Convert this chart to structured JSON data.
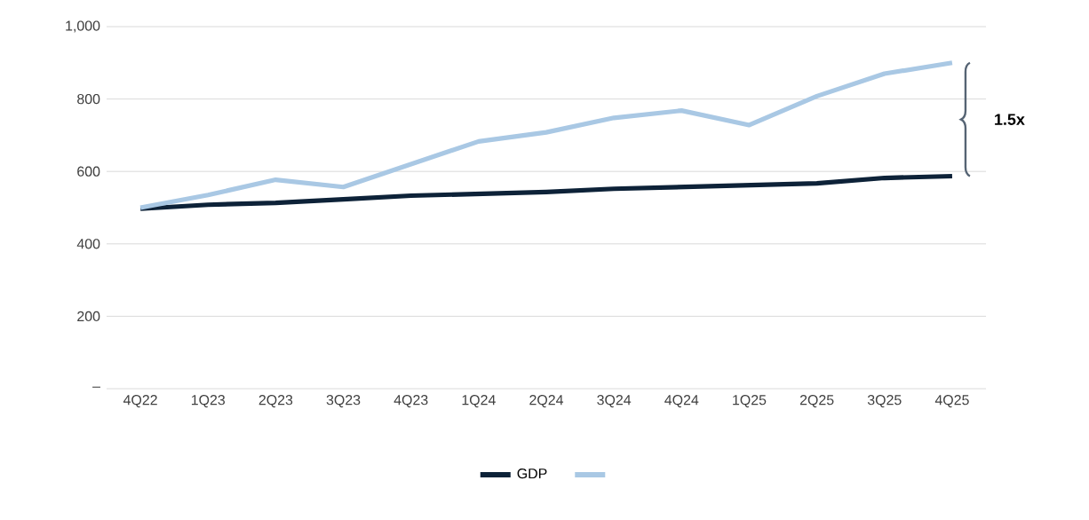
{
  "chart_data": {
    "type": "line",
    "categories": [
      "4Q22",
      "1Q23",
      "2Q23",
      "3Q23",
      "4Q23",
      "1Q24",
      "2Q24",
      "3Q24",
      "4Q24",
      "1Q25",
      "2Q25",
      "3Q25",
      "4Q25"
    ],
    "series": [
      {
        "name": "GDP",
        "color": "#0d2238",
        "values": [
          497,
          508,
          513,
          523,
          533,
          538,
          543,
          552,
          557,
          562,
          567,
          582,
          587
        ]
      },
      {
        "color": "#a9c8e4",
        "values": [
          500,
          535,
          577,
          557,
          620,
          683,
          708,
          748,
          768,
          728,
          808,
          870,
          900
        ]
      }
    ],
    "ylim": [
      0,
      1000
    ],
    "yticks": [
      {
        "value": 0,
        "label": "–"
      },
      200,
      400,
      600,
      800,
      {
        "value": 1000,
        "label": "1,000"
      }
    ],
    "grid": "y",
    "legend": "bottom",
    "marker": "none",
    "line_style": "solid",
    "annotations": [
      "1.5x"
    ]
  }
}
